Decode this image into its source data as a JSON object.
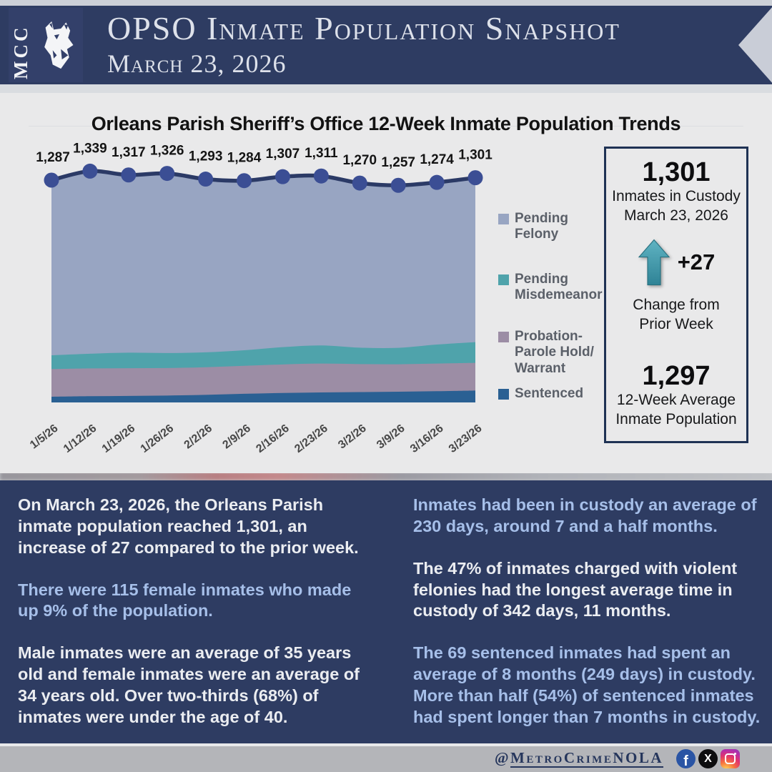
{
  "header": {
    "logo_text": "MCC",
    "title": "OPSO Inmate Population Snapshot",
    "date": "March 23, 2026"
  },
  "chart": {
    "title": "Orleans Parish Sheriff’s Office 12-Week Inmate Population Trends"
  },
  "chart_data": {
    "type": "area",
    "stacked": true,
    "x": [
      "1/5/26",
      "1/12/26",
      "1/19/26",
      "1/26/26",
      "2/2/26",
      "2/9/26",
      "2/16/26",
      "2/23/26",
      "3/2/26",
      "3/9/26",
      "3/16/26",
      "3/23/26"
    ],
    "series": [
      {
        "name": "Sentenced",
        "color": "#2a6093",
        "values": [
          33,
          36,
          38,
          40,
          44,
          50,
          55,
          58,
          60,
          62,
          65,
          69
        ]
      },
      {
        "name": "Probation-Parole Hold/Warrant",
        "color": "#9c8da5",
        "values": [
          160,
          161,
          160,
          159,
          160,
          162,
          165,
          167,
          162,
          159,
          160,
          160
        ]
      },
      {
        "name": "Pending Misdemeanor",
        "color": "#4fa3ab",
        "values": [
          80,
          85,
          90,
          87,
          86,
          90,
          100,
          105,
          95,
          95,
          110,
          120
        ]
      },
      {
        "name": "Pending Felony",
        "color": "#98a5c2",
        "values": [
          1014,
          1057,
          1029,
          1040,
          1003,
          982,
          987,
          981,
          953,
          941,
          939,
          952
        ]
      }
    ],
    "totals": [
      1287,
      1339,
      1317,
      1326,
      1293,
      1284,
      1307,
      1311,
      1270,
      1257,
      1274,
      1301
    ],
    "total_labels": [
      "1,287",
      "1,339",
      "1,317",
      "1,326",
      "1,293",
      "1,284",
      "1,307",
      "1,311",
      "1,270",
      "1,257",
      "1,274",
      "1,301"
    ],
    "line_color": "#2b3a66",
    "marker_color": "#3b4e94",
    "ylim": [
      0,
      1400
    ],
    "legend_position": "right",
    "grid": false
  },
  "legend": {
    "items": [
      {
        "label": "Pending Felony",
        "lines": [
          "Pending",
          "Felony"
        ],
        "color": "#98a5c2"
      },
      {
        "label": "Pending Misdemeanor",
        "lines": [
          "Pending",
          "Misdemeanor"
        ],
        "color": "#4fa3ab"
      },
      {
        "label": "Probation-Parole Hold/Warrant",
        "lines": [
          "Probation-",
          "Parole Hold/",
          "Warrant"
        ],
        "color": "#9c8da5"
      },
      {
        "label": "Sentenced",
        "lines": [
          "Sentenced"
        ],
        "color": "#2a6093"
      }
    ]
  },
  "stats": {
    "custody": {
      "value": "1,301",
      "line1": "Inmates in Custody",
      "line2": "March 23, 2026"
    },
    "change": {
      "value": "+27",
      "label": "Change from Prior Week",
      "arrow_color": "#3f9cae"
    },
    "average": {
      "value": "1,297",
      "line1": "12-Week Average",
      "line2": "Inmate Population"
    }
  },
  "insights": {
    "left": [
      {
        "tone": "white",
        "text": "On March 23, 2026, the Orleans Parish inmate population reached 1,301, an increase of 27 compared to the prior week."
      },
      {
        "tone": "blue",
        "text": "There were 115 female inmates who made up 9% of the population."
      },
      {
        "tone": "white",
        "text": "Male inmates were an average of 35 years old and female inmates were an average of 34 years old. Over two-thirds (68%) of inmates were under the age of 40."
      }
    ],
    "right": [
      {
        "tone": "blue",
        "text": "Inmates had been in custody an average of 230 days, around 7 and a half months."
      },
      {
        "tone": "white",
        "text": "The 47% of inmates charged with violent felonies had the longest average time in custody of 342 days, 11 months."
      },
      {
        "tone": "blue",
        "text": "The 69 sentenced inmates had spent an average of 8 months (249 days) in custody. More than half (54%) of sentenced inmates had spent longer than 7 months in custody."
      }
    ]
  },
  "footer": {
    "handle_at": "@",
    "handle_name": "MetroCrimeNOLA",
    "icons": [
      "facebook-icon",
      "x-icon",
      "instagram-icon"
    ]
  },
  "colors": {
    "banner_navy": "#2e3c62",
    "card_grey": "#e9e9ea",
    "text_white": "#ebedf1",
    "text_blue": "#a6bfe9",
    "footer_grey": "#b4b5b9"
  }
}
